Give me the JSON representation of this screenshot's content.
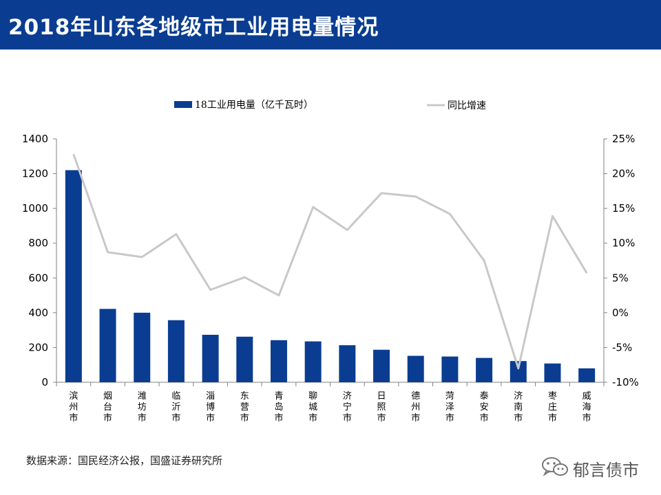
{
  "header": {
    "title": "2018年山东各地级市工业用电量情况"
  },
  "chart_data": {
    "type": "bar",
    "categories": [
      "滨州市",
      "烟台市",
      "潍坊市",
      "临沂市",
      "淄博市",
      "东营市",
      "青岛市",
      "聊城市",
      "济宁市",
      "日照市",
      "德州市",
      "菏泽市",
      "泰安市",
      "济南市",
      "枣庄市",
      "威海市"
    ],
    "series": [
      {
        "name": "18工业用电量（亿千瓦时）",
        "type": "bar",
        "axis": "left",
        "values": [
          1220,
          422,
          400,
          357,
          273,
          262,
          242,
          235,
          213,
          187,
          152,
          148,
          140,
          122,
          108,
          80
        ]
      },
      {
        "name": "同比增速",
        "type": "line",
        "axis": "right",
        "values": [
          22.8,
          8.7,
          8.0,
          11.3,
          3.3,
          5.1,
          2.5,
          15.2,
          11.9,
          17.2,
          16.7,
          14.2,
          7.5,
          -8.0,
          13.9,
          5.7
        ]
      }
    ],
    "left_axis": {
      "ylim": [
        0,
        1400
      ],
      "ticks": [
        "0",
        "200",
        "400",
        "600",
        "800",
        "1000",
        "1200",
        "1400"
      ]
    },
    "right_axis": {
      "ylim": [
        -10,
        25
      ],
      "ticks": [
        "-10%",
        "-5%",
        "0%",
        "5%",
        "10%",
        "15%",
        "20%",
        "25%"
      ]
    },
    "legend_position": "top",
    "grid": false,
    "colors": {
      "bar": "#0a3d91",
      "line": "#c8c8c8",
      "axis": "#808080"
    }
  },
  "footer": {
    "source": "数据来源：国民经济公报，国盛证券研究所",
    "watermark": "郁言债市",
    "watermark_icon": "wechat-icon"
  }
}
